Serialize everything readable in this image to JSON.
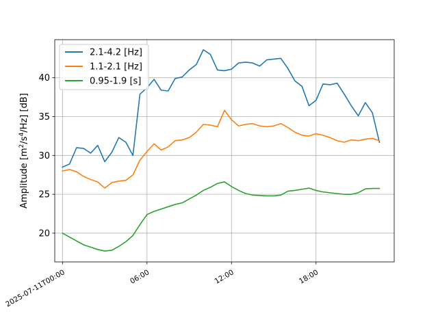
{
  "chart_data": {
    "type": "line",
    "title": "",
    "xlabel": "",
    "ylabel_main": "Amplitude [m",
    "ylabel_exp1": "2",
    "ylabel_mid": "/s",
    "ylabel_exp2": "4",
    "ylabel_end": "/Hz] [dB]",
    "x_start": "2025-07-11T00:00",
    "x_step_minutes": 30,
    "xlim_hours": [
      -0.55,
      23.55
    ],
    "ylim": [
      16.3,
      44.9
    ],
    "yticks": [
      20,
      25,
      30,
      35,
      40
    ],
    "xticks": [
      {
        "hour": 0,
        "label": "2025-07-11T00:00"
      },
      {
        "hour": 6,
        "label": "06:00"
      },
      {
        "hour": 12,
        "label": "12:00"
      },
      {
        "hour": 18,
        "label": "18:00"
      }
    ],
    "grid": true,
    "legend_position": "upper-left",
    "series": [
      {
        "name": "2.1-4.2 [Hz]",
        "color": "#1f77b4",
        "values": [
          28.5,
          28.9,
          31.0,
          30.9,
          30.3,
          31.3,
          29.2,
          30.4,
          32.3,
          31.7,
          30.0,
          37.9,
          38.7,
          39.8,
          38.4,
          38.3,
          39.9,
          40.1,
          41.0,
          41.7,
          43.6,
          43.0,
          41.0,
          40.9,
          41.1,
          41.9,
          42.0,
          41.9,
          41.5,
          42.3,
          42.4,
          42.5,
          41.2,
          39.6,
          38.9,
          36.4,
          37.1,
          39.2,
          39.1,
          39.3,
          37.9,
          36.4,
          35.1,
          36.8,
          35.5,
          31.7
        ]
      },
      {
        "name": "1.1-2.1 [Hz]",
        "color": "#ff7f0e",
        "values": [
          28.0,
          28.2,
          27.9,
          27.3,
          26.9,
          26.6,
          25.8,
          26.5,
          26.7,
          26.8,
          27.5,
          29.4,
          30.5,
          31.5,
          30.7,
          31.1,
          31.9,
          32.0,
          32.3,
          33.0,
          34.0,
          33.9,
          33.7,
          35.8,
          34.6,
          33.8,
          34.0,
          34.1,
          33.8,
          33.7,
          33.8,
          34.1,
          33.6,
          33.0,
          32.6,
          32.5,
          32.8,
          32.6,
          32.3,
          31.9,
          31.7,
          32.0,
          31.9,
          32.1,
          32.2,
          31.9
        ]
      },
      {
        "name": "0.95-1.9 [s]",
        "color": "#2ca02c",
        "values": [
          20.0,
          19.5,
          19.0,
          18.5,
          18.2,
          17.9,
          17.7,
          17.8,
          18.3,
          18.9,
          19.7,
          21.1,
          22.4,
          22.8,
          23.1,
          23.4,
          23.7,
          23.9,
          24.4,
          24.9,
          25.5,
          25.9,
          26.4,
          26.6,
          26.0,
          25.5,
          25.1,
          24.9,
          24.85,
          24.8,
          24.8,
          24.9,
          25.4,
          25.5,
          25.65,
          25.8,
          25.5,
          25.3,
          25.2,
          25.1,
          25.0,
          25.0,
          25.2,
          25.7,
          25.75,
          25.75
        ]
      }
    ]
  }
}
